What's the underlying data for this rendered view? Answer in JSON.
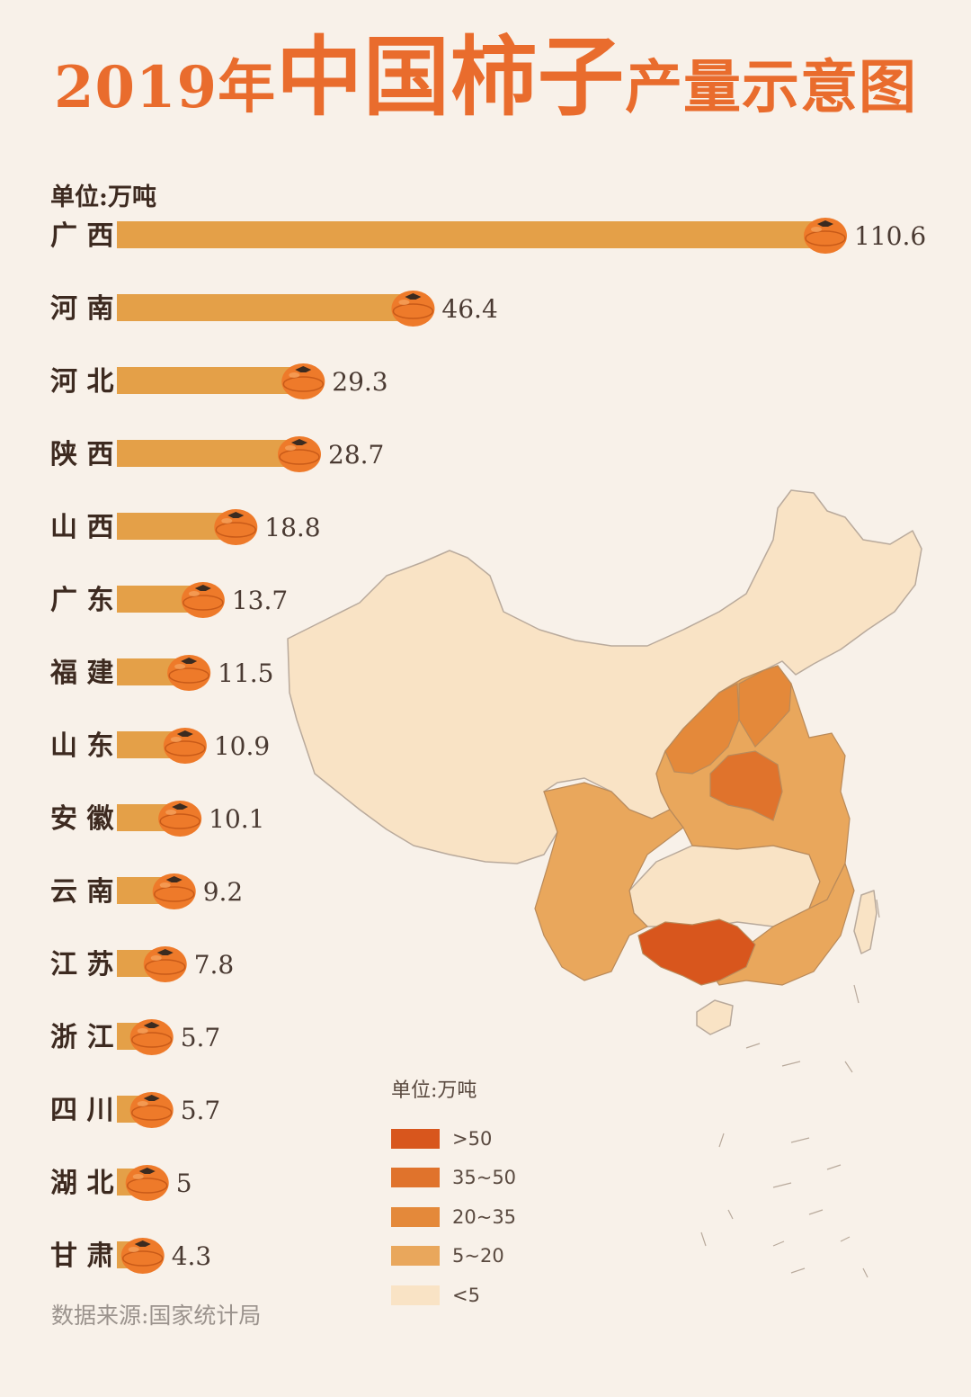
{
  "title": {
    "part1": "2019年",
    "part2": "中国柿子",
    "part3": "产量示意图"
  },
  "unit_label": "单位:万吨",
  "source": "数据来源:国家统计局",
  "colors": {
    "background": "#f8f1e9",
    "title": "#e96c2d",
    "bar": "#e4a048",
    "persimmon": "#ee7a2a",
    "label_text": "#3d2a20",
    "value_text": "#4a3a32"
  },
  "chart_data": {
    "type": "bar",
    "orientation": "horizontal",
    "ylabel": "单位:万吨",
    "categories": [
      "广 西",
      "河 南",
      "河 北",
      "陕 西",
      "山 西",
      "广 东",
      "福 建",
      "山 东",
      "安 徽",
      "云 南",
      "江 苏",
      "浙 江",
      "四 川",
      "湖 北",
      "甘 肃"
    ],
    "values": [
      110.6,
      46.4,
      29.3,
      28.7,
      18.8,
      13.7,
      11.5,
      10.9,
      10.1,
      9.2,
      7.8,
      5.7,
      5.7,
      5,
      4.3
    ],
    "value_labels": [
      "110.6",
      "46.4",
      "29.3",
      "28.7",
      "18.8",
      "13.7",
      "11.5",
      "10.9",
      "10.1",
      "9.2",
      "7.8",
      "5.7",
      "5.7",
      "5",
      "4.3"
    ],
    "marker_icon": "persimmon-icon"
  },
  "map": {
    "type": "choropleth",
    "legend_unit": "单位:万吨",
    "legend": [
      {
        "label": ">50",
        "color": "#d8561d"
      },
      {
        "label": "35~50",
        "color": "#e0732c"
      },
      {
        "label": "20~35",
        "color": "#e4893a"
      },
      {
        "label": "5~20",
        "color": "#e9a75c"
      },
      {
        "label": "<5",
        "color": "#f9e3c5"
      }
    ]
  }
}
